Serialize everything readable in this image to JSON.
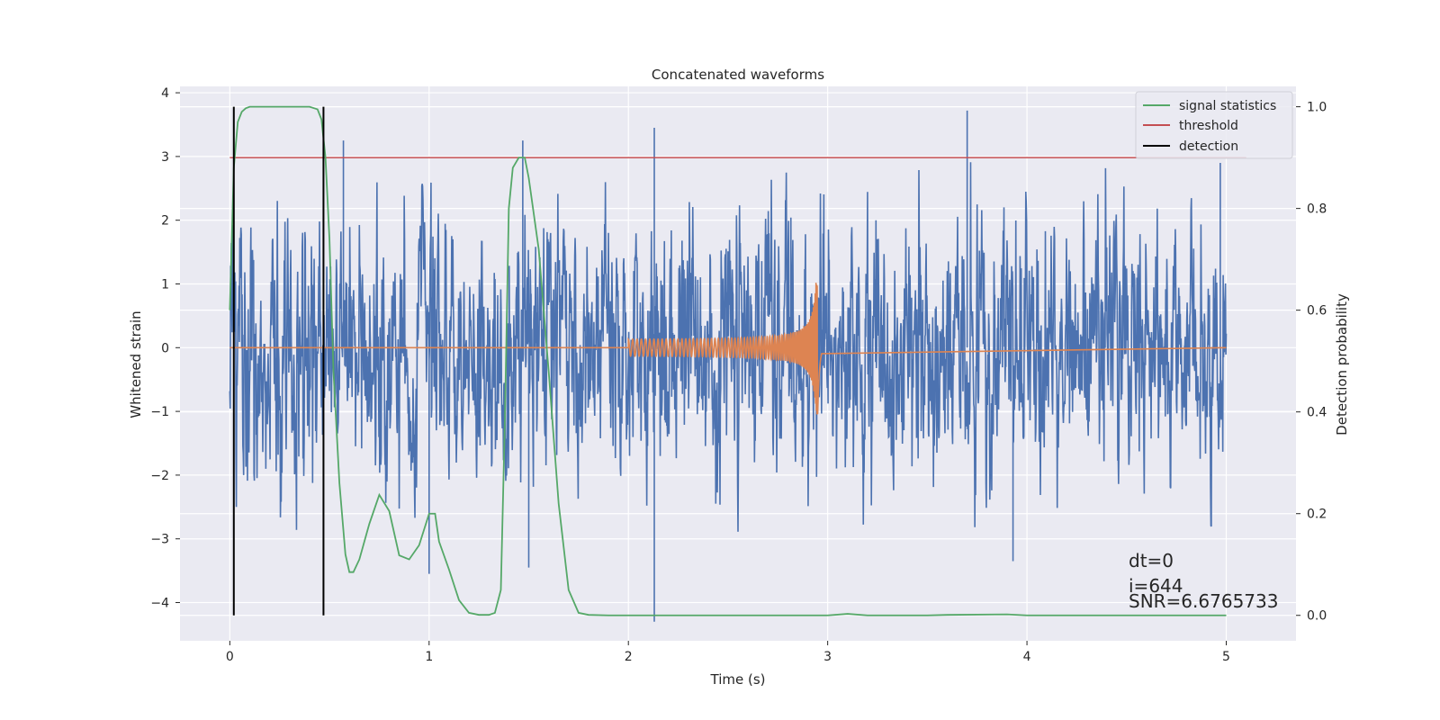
{
  "chart_data": {
    "type": "line",
    "title": "Concatenated waveforms",
    "xlabel": "Time (s)",
    "ylabel_left": "Whitened strain",
    "ylabel_right": "Detection probability",
    "xlim": [
      -0.25,
      5.35
    ],
    "ylim_left": [
      -4.6,
      4.1
    ],
    "ylim_right": [
      -0.05,
      1.04
    ],
    "xticks": [
      0,
      1,
      2,
      3,
      4,
      5
    ],
    "yticks_left": [
      -4,
      -3,
      -2,
      -1,
      0,
      1,
      2,
      3,
      4
    ],
    "yticks_right": [
      0.0,
      0.2,
      0.4,
      0.6,
      0.8,
      1.0
    ],
    "grid": true,
    "legend_position": "top-right",
    "colors": {
      "strain": "#4c72b0",
      "template": "#dd8452",
      "signal": "#55a868",
      "threshold": "#c44e52",
      "detection": "#000000",
      "background": "#eaeaf2",
      "grid": "#ffffff"
    },
    "series": [
      {
        "name": "",
        "role": "whitened-strain",
        "axis": "left",
        "t_start": 0,
        "t_end": 5,
        "typical_amplitude": 1.0,
        "spikes": [
          {
            "t": 0.57,
            "y": 3.25
          },
          {
            "t": 1.47,
            "y": 3.25
          },
          {
            "t": 2.13,
            "y": 3.45
          },
          {
            "t": 2.13,
            "y": -4.3
          },
          {
            "t": 3.7,
            "y": 3.72
          },
          {
            "t": 4.97,
            "y": 2.9
          },
          {
            "t": 1.0,
            "y": -3.55
          },
          {
            "t": 1.5,
            "y": -3.45
          },
          {
            "t": 3.93,
            "y": -3.35
          }
        ]
      },
      {
        "name": "",
        "role": "chirp-template",
        "axis": "left",
        "t_start": 0,
        "t_end": 5,
        "chirp_start": 2.0,
        "chirp_merger": 2.95,
        "start_amplitude": 0.12,
        "peak_amplitude": 1.05,
        "min_amplitude": -1.25
      },
      {
        "name": "signal statistics",
        "axis": "right",
        "x": [
          0.0,
          0.02,
          0.04,
          0.06,
          0.08,
          0.1,
          0.15,
          0.3,
          0.4,
          0.44,
          0.46,
          0.48,
          0.5,
          0.52,
          0.55,
          0.58,
          0.6,
          0.62,
          0.65,
          0.7,
          0.75,
          0.8,
          0.85,
          0.9,
          0.95,
          1.0,
          1.03,
          1.05,
          1.1,
          1.15,
          1.2,
          1.25,
          1.3,
          1.33,
          1.36,
          1.38,
          1.4,
          1.42,
          1.45,
          1.48,
          1.5,
          1.55,
          1.6,
          1.65,
          1.7,
          1.75,
          1.8,
          1.9,
          2.5,
          3.0,
          3.1,
          3.2,
          3.5,
          3.6,
          3.9,
          4.0,
          4.5,
          5.0
        ],
        "y": [
          0.6,
          0.88,
          0.97,
          0.99,
          0.997,
          1.0,
          1.0,
          1.0,
          1.0,
          0.995,
          0.975,
          0.9,
          0.74,
          0.48,
          0.26,
          0.12,
          0.085,
          0.085,
          0.11,
          0.18,
          0.237,
          0.205,
          0.118,
          0.11,
          0.138,
          0.2,
          0.2,
          0.145,
          0.09,
          0.03,
          0.005,
          0.001,
          0.001,
          0.005,
          0.05,
          0.38,
          0.8,
          0.88,
          0.9,
          0.9,
          0.86,
          0.72,
          0.48,
          0.22,
          0.05,
          0.005,
          0.001,
          0.0,
          0.0,
          0.0,
          0.003,
          0.0,
          0.0,
          0.001,
          0.002,
          0.0,
          0.0,
          0.0
        ]
      },
      {
        "name": "threshold",
        "axis": "right",
        "x": [
          0.0,
          5.1
        ],
        "y": [
          0.9,
          0.9
        ]
      },
      {
        "name": "detection",
        "axis": "right",
        "x_positions": [
          0.02,
          0.47
        ],
        "y_range": [
          0.0,
          1.0
        ]
      }
    ],
    "legend": [
      "signal statistics",
      "threshold",
      "detection"
    ],
    "annotations": [
      "dt=0",
      "i=644",
      "SNR=6.6765733"
    ]
  }
}
